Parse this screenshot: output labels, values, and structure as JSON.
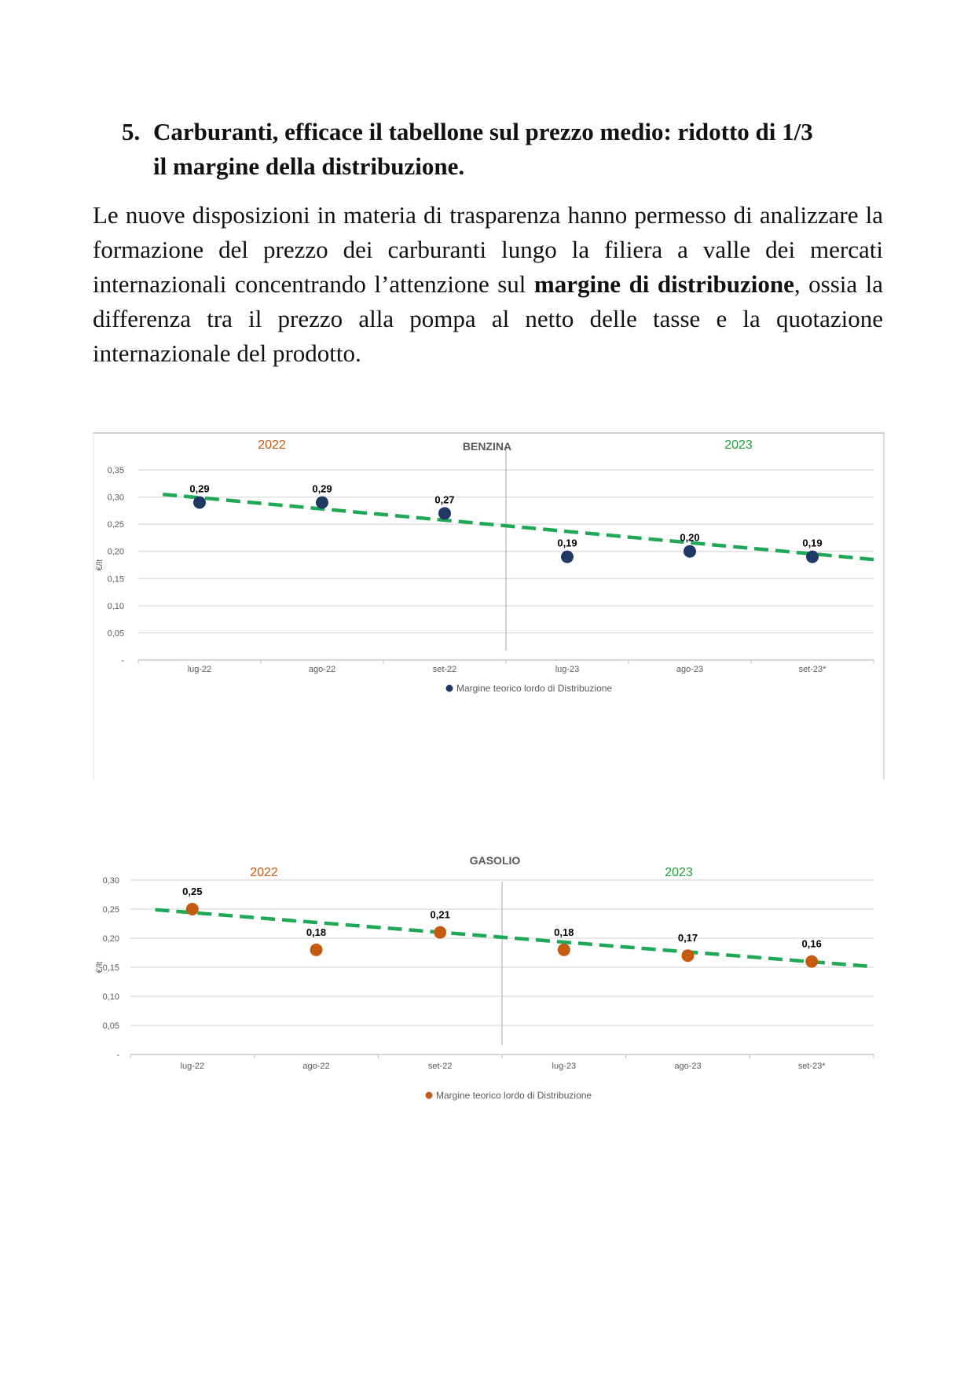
{
  "document": {
    "heading_number": "5.",
    "heading_line1": "Carburanti, efficace il tabellone sul prezzo medio: ridotto di 1/3",
    "heading_line2": "il margine della distribuzione.",
    "para_part1": "Le nuove disposizioni in materia di trasparenza hanno permesso di analizzare la formazione del prezzo dei carburanti lungo la filiera a valle dei mercati internazionali concentrando l’attenzione sul ",
    "para_bold": "margine di distribuzione",
    "para_part2": ", ossia la differenza tra il prezzo alla pompa al netto delle tasse e la quotazione internazionale del prodotto."
  },
  "colors": {
    "benzina_marker": "#1f3864",
    "gasolio_marker": "#c55a11",
    "trend": "#1fa855",
    "year_2022": "#c55a11",
    "year_2023": "#1f9e3f",
    "grid": "#d9d9d9",
    "axis_text": "#595959"
  },
  "chart_data": [
    {
      "type": "scatter",
      "title": "BENZINA",
      "ylabel": "€/lt",
      "year_labels": [
        "2022",
        "2023"
      ],
      "categories": [
        "lug-22",
        "ago-22",
        "set-22",
        "lug-23",
        "ago-23",
        "set-23*"
      ],
      "y_ticks": [
        "-",
        "0,05",
        "0,10",
        "0,15",
        "0,20",
        "0,25",
        "0,30",
        "0,35"
      ],
      "ylim": [
        0,
        0.35
      ],
      "series": [
        {
          "name": "Margine teorico lordo di Distribuzione",
          "values": [
            0.29,
            0.29,
            0.27,
            0.19,
            0.2,
            0.19
          ],
          "labels": [
            "0,29",
            "0,29",
            "0,27",
            "0,19",
            "0,20",
            "0,19"
          ]
        }
      ],
      "trendline": {
        "style": "dashed",
        "start": 0.305,
        "end": 0.185
      },
      "divider_after_category": 3,
      "legend_position": "bottom",
      "grid": true
    },
    {
      "type": "scatter",
      "title": "GASOLIO",
      "ylabel": "€/lt",
      "year_labels": [
        "2022",
        "2023"
      ],
      "categories": [
        "lug-22",
        "ago-22",
        "set-22",
        "lug-23",
        "ago-23",
        "set-23*"
      ],
      "y_ticks": [
        "-",
        "0,05",
        "0,10",
        "0,15",
        "0,20",
        "0,25",
        "0,30"
      ],
      "ylim": [
        0,
        0.3
      ],
      "series": [
        {
          "name": "Margine teorico lordo di Distribuzione",
          "values": [
            0.25,
            0.18,
            0.21,
            0.18,
            0.17,
            0.16
          ],
          "labels": [
            "0,25",
            "0,18",
            "0,21",
            "0,18",
            "0,17",
            "0,16"
          ]
        }
      ],
      "trendline": {
        "style": "dashed",
        "start": 0.249,
        "end": 0.151
      },
      "divider_after_category": 3,
      "legend_position": "bottom",
      "grid": true
    }
  ]
}
